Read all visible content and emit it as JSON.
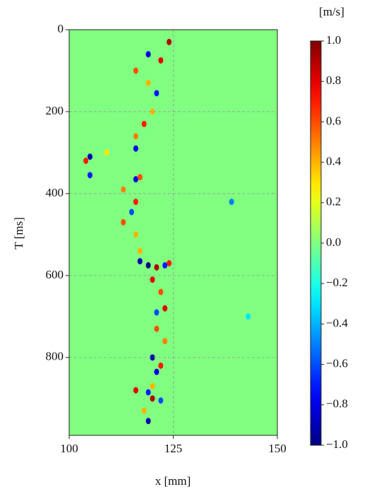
{
  "chart_data": {
    "type": "heatmap",
    "x_label": "x [mm]",
    "y_label": "T [ms]",
    "xlim": [
      100,
      150
    ],
    "ylim": [
      0,
      990
    ],
    "y_inverted": true,
    "xticks": [
      100,
      125,
      150
    ],
    "yticks": [
      0,
      200,
      400,
      600,
      800
    ],
    "grid": true,
    "grid_style": "dashed",
    "background_value": 0,
    "x": [
      124,
      119,
      122,
      116,
      119,
      121,
      120,
      118,
      116,
      116,
      109,
      104,
      105,
      105,
      116,
      117,
      113,
      116,
      115,
      113,
      116,
      117,
      117,
      119,
      121,
      124,
      123,
      120,
      122,
      121,
      123,
      121,
      123,
      120,
      122,
      121,
      120,
      116,
      119,
      120,
      122,
      118,
      119,
      139,
      143
    ],
    "y": [
      30,
      60,
      75,
      100,
      130,
      155,
      200,
      230,
      260,
      290,
      300,
      320,
      310,
      355,
      365,
      360,
      390,
      420,
      445,
      470,
      500,
      540,
      565,
      575,
      580,
      570,
      575,
      610,
      640,
      690,
      680,
      730,
      760,
      800,
      820,
      835,
      870,
      880,
      885,
      900,
      905,
      930,
      955,
      420,
      700
    ],
    "values": [
      0.9,
      -0.8,
      0.8,
      0.6,
      0.4,
      -0.7,
      0.4,
      0.7,
      0.5,
      -0.8,
      0.3,
      0.7,
      -0.9,
      -0.7,
      -0.8,
      0.6,
      0.5,
      0.7,
      -0.6,
      0.6,
      0.4,
      0.4,
      -0.9,
      -1.0,
      0.9,
      0.7,
      -0.7,
      0.8,
      0.6,
      -0.6,
      0.8,
      0.6,
      0.5,
      -0.9,
      0.7,
      -0.8,
      0.4,
      0.8,
      -0.7,
      0.9,
      -0.6,
      0.4,
      -0.9,
      -0.5,
      -0.3
    ],
    "colorbar": {
      "label": "[m/s]",
      "colormap": "jet",
      "clim": [
        -1,
        1
      ],
      "ticks": [
        {
          "value": 1,
          "label": "1.0"
        },
        0.8,
        0.6,
        0.4,
        0.2,
        {
          "value": 0,
          "label": "0.0"
        },
        {
          "value": -0.2,
          "label": "−0.2"
        },
        {
          "value": -0.4,
          "label": "−0.4"
        },
        {
          "value": -0.6,
          "label": "−0.6"
        },
        {
          "value": -0.8,
          "label": "−0.8"
        },
        {
          "value": -1,
          "label": "−1.0"
        }
      ]
    }
  }
}
